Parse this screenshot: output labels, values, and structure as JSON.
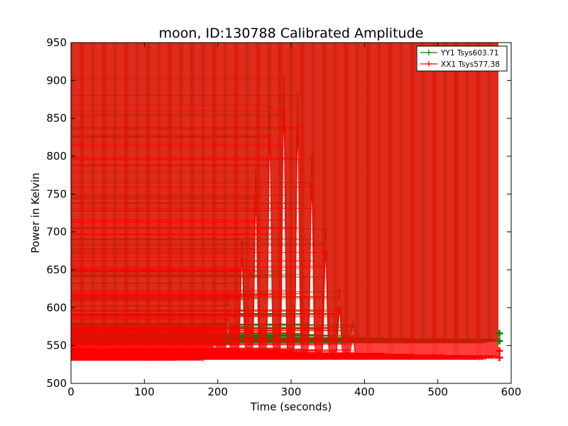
{
  "chart_data": {
    "type": "line",
    "title": "moon, ID:130788 Calibrated Amplitude",
    "xlabel": "Time (seconds)",
    "ylabel": "Power in Kelvin",
    "xlim": [
      0,
      600
    ],
    "ylim": [
      500,
      950
    ],
    "xticks": [
      0,
      100,
      200,
      300,
      400,
      500,
      600
    ],
    "yticks": [
      500,
      550,
      600,
      650,
      700,
      750,
      800,
      850,
      900,
      950
    ],
    "grid": false,
    "legend_position": "top-right",
    "marker": "+",
    "series": [
      {
        "name": "YY1 Tsys603.71",
        "color": "#008000",
        "baseline": {
          "level": 558,
          "ripple": 6,
          "ripple_period": 38,
          "ripple_fade_end": 220,
          "tail_level": 556
        },
        "peaks": [
          {
            "t": 196,
            "value": 572
          },
          {
            "t": 214,
            "value": 615
          },
          {
            "t": 233,
            "value": 685
          },
          {
            "t": 252,
            "value": 780
          },
          {
            "t": 271,
            "value": 865
          },
          {
            "t": 290,
            "value": 903
          },
          {
            "t": 309,
            "value": 880
          },
          {
            "t": 328,
            "value": 798
          },
          {
            "t": 347,
            "value": 703
          },
          {
            "t": 366,
            "value": 622
          },
          {
            "t": 384,
            "value": 577
          }
        ],
        "end_markers": [
          {
            "t": 584,
            "value": 566
          },
          {
            "t": 584,
            "value": 556
          }
        ]
      },
      {
        "name": "XX1 Tsys577.38",
        "color": "#ff0000",
        "baseline": {
          "level": 538,
          "ripple": 6,
          "ripple_period": 38,
          "ripple_fade_end": 220,
          "tail_level": 534
        },
        "peaks": [
          {
            "t": 196,
            "value": 555
          },
          {
            "t": 214,
            "value": 592
          },
          {
            "t": 233,
            "value": 662
          },
          {
            "t": 252,
            "value": 745
          },
          {
            "t": 271,
            "value": 825
          },
          {
            "t": 290,
            "value": 860
          },
          {
            "t": 309,
            "value": 838
          },
          {
            "t": 328,
            "value": 762
          },
          {
            "t": 347,
            "value": 672
          },
          {
            "t": 366,
            "value": 598
          },
          {
            "t": 384,
            "value": 560
          }
        ],
        "end_markers": [
          {
            "t": 584,
            "value": 543
          },
          {
            "t": 584,
            "value": 534
          }
        ]
      }
    ]
  }
}
